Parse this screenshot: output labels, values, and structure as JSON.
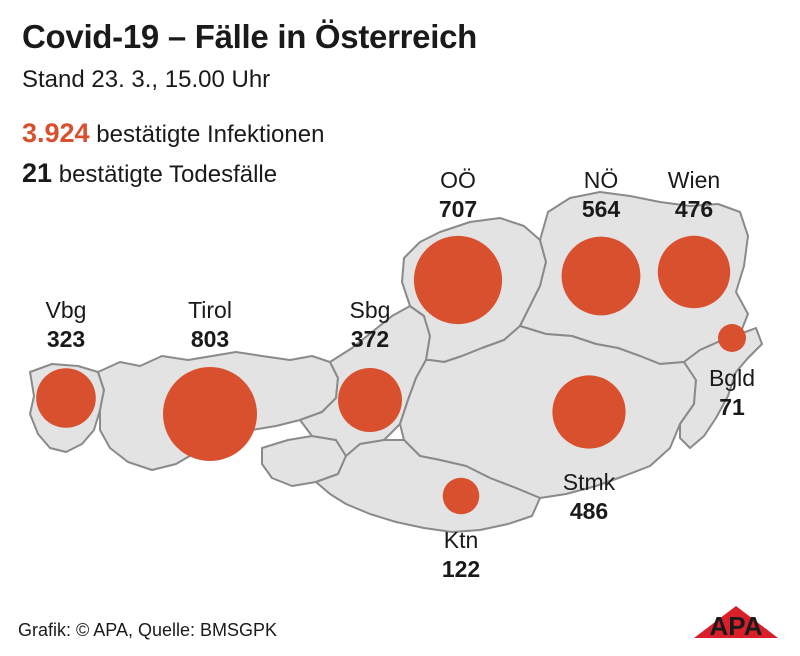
{
  "title": "Covid-19 – Fälle in Österreich",
  "subtitle": "Stand 23. 3., 15.00 Uhr",
  "stats": {
    "infections_value": "3.924",
    "infections_label": "bestätigte Infektionen",
    "deaths_value": "21",
    "deaths_label": "bestätigte Todesfälle"
  },
  "colors": {
    "accent": "#d9502f",
    "region_fill": "#e3e3e3",
    "region_border": "#8a8a8a"
  },
  "regions": [
    {
      "key": "vbg",
      "name": "Vbg",
      "cases": 323
    },
    {
      "key": "tirol",
      "name": "Tirol",
      "cases": 803
    },
    {
      "key": "sbg",
      "name": "Sbg",
      "cases": 372
    },
    {
      "key": "ooe",
      "name": "OÖ",
      "cases": 707
    },
    {
      "key": "noe",
      "name": "NÖ",
      "cases": 564
    },
    {
      "key": "wien",
      "name": "Wien",
      "cases": 476
    },
    {
      "key": "bgld",
      "name": "Bgld",
      "cases": 71
    },
    {
      "key": "stmk",
      "name": "Stmk",
      "cases": 486
    },
    {
      "key": "ktn",
      "name": "Ktn",
      "cases": 122
    }
  ],
  "footer": "Grafik: © APA, Quelle: BMSGPK",
  "logo_text": "APA"
}
